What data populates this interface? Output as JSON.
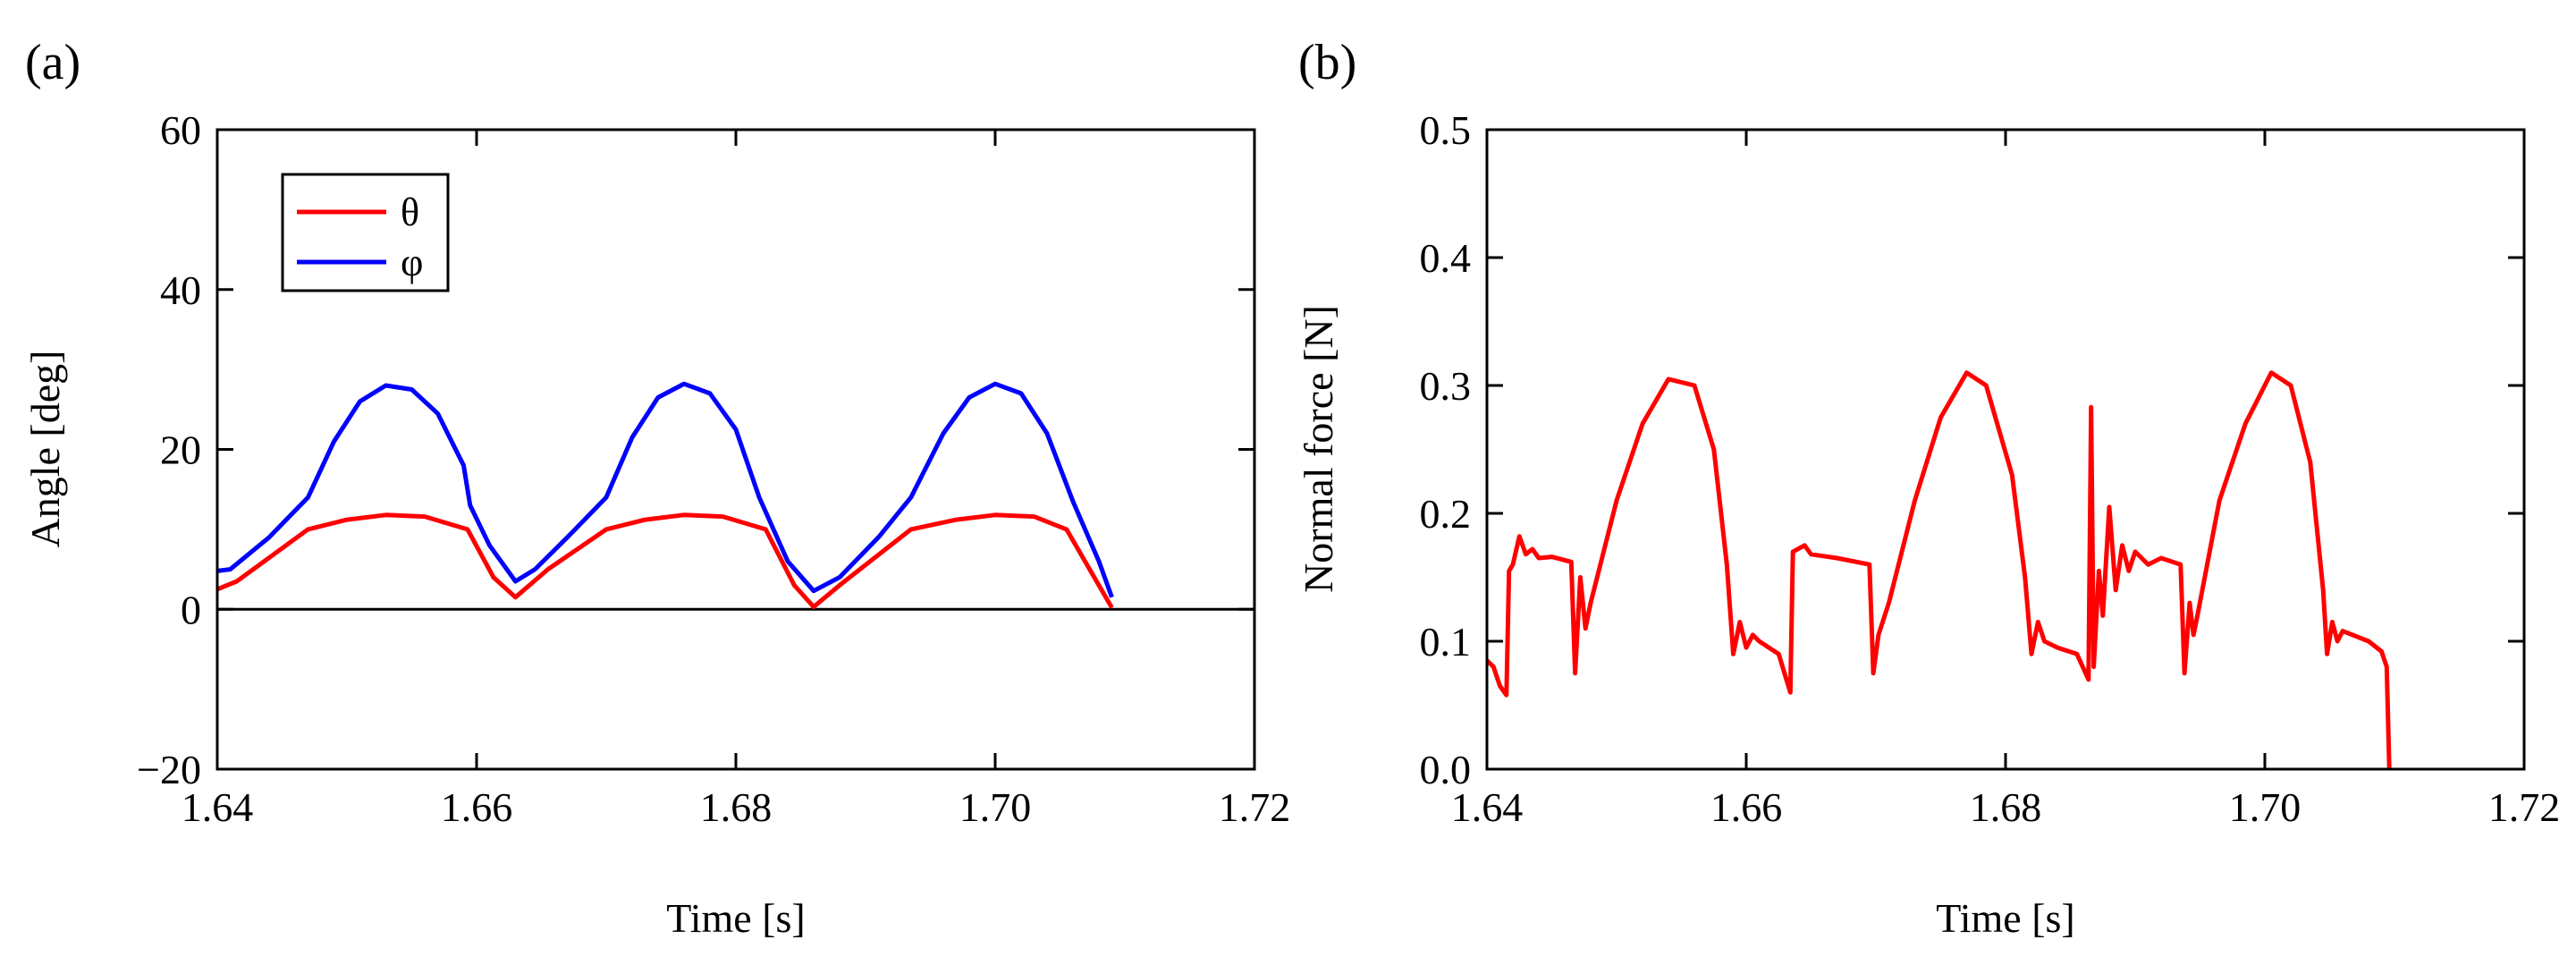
{
  "chart_data": [
    {
      "type": "line",
      "panel_label": "(a)",
      "xlabel": "Time [s]",
      "ylabel": "Angle [deg]",
      "xlim": [
        1.64,
        1.72
      ],
      "ylim": [
        -20,
        60
      ],
      "xticks": [
        1.64,
        1.66,
        1.68,
        1.7,
        1.72
      ],
      "xtick_labels": [
        "1.64",
        "1.66",
        "1.68",
        "1.70",
        "1.72"
      ],
      "yticks": [
        -20,
        0,
        20,
        40,
        60
      ],
      "ytick_labels": [
        "−20",
        "0",
        "20",
        "40",
        "60"
      ],
      "zero_line": true,
      "legend_position": "top-left",
      "series": [
        {
          "name": "θ",
          "color": "#ff0000",
          "points": [
            [
              1.64,
              2.5
            ],
            [
              1.6415,
              3.5
            ],
            [
              1.647,
              10.0
            ],
            [
              1.65,
              11.2
            ],
            [
              1.653,
              11.8
            ],
            [
              1.656,
              11.6
            ],
            [
              1.6593,
              10.0
            ],
            [
              1.6613,
              4.0
            ],
            [
              1.663,
              1.5
            ],
            [
              1.6655,
              5.0
            ],
            [
              1.67,
              10.0
            ],
            [
              1.673,
              11.2
            ],
            [
              1.676,
              11.8
            ],
            [
              1.679,
              11.6
            ],
            [
              1.6823,
              10.0
            ],
            [
              1.6845,
              3.0
            ],
            [
              1.686,
              0.3
            ],
            [
              1.688,
              3.0
            ],
            [
              1.6935,
              10.0
            ],
            [
              1.697,
              11.2
            ],
            [
              1.7,
              11.8
            ],
            [
              1.703,
              11.6
            ],
            [
              1.7055,
              10.0
            ],
            [
              1.709,
              0.2
            ]
          ]
        },
        {
          "name": "φ",
          "color": "#0000ff",
          "points": [
            [
              1.64,
              4.8
            ],
            [
              1.641,
              5.0
            ],
            [
              1.644,
              9.0
            ],
            [
              1.647,
              14.0
            ],
            [
              1.649,
              21.0
            ],
            [
              1.651,
              26.0
            ],
            [
              1.653,
              28.0
            ],
            [
              1.655,
              27.5
            ],
            [
              1.657,
              24.5
            ],
            [
              1.659,
              18.0
            ],
            [
              1.6595,
              13.0
            ],
            [
              1.661,
              8.0
            ],
            [
              1.663,
              3.5
            ],
            [
              1.6645,
              5.0
            ],
            [
              1.667,
              9.0
            ],
            [
              1.67,
              14.0
            ],
            [
              1.672,
              21.5
            ],
            [
              1.674,
              26.5
            ],
            [
              1.676,
              28.2
            ],
            [
              1.678,
              27.0
            ],
            [
              1.68,
              22.5
            ],
            [
              1.6818,
              14.0
            ],
            [
              1.684,
              6.0
            ],
            [
              1.686,
              2.3
            ],
            [
              1.688,
              4.0
            ],
            [
              1.691,
              9.0
            ],
            [
              1.6935,
              14.0
            ],
            [
              1.696,
              22.0
            ],
            [
              1.698,
              26.5
            ],
            [
              1.7,
              28.2
            ],
            [
              1.702,
              27.0
            ],
            [
              1.704,
              22.0
            ],
            [
              1.706,
              13.5
            ],
            [
              1.708,
              6.0
            ],
            [
              1.709,
              1.5
            ]
          ]
        }
      ]
    },
    {
      "type": "line",
      "panel_label": "(b)",
      "xlabel": "Time [s]",
      "ylabel": "Normal force [N]",
      "xlim": [
        1.64,
        1.72
      ],
      "ylim": [
        0.0,
        0.5
      ],
      "xticks": [
        1.64,
        1.66,
        1.68,
        1.7,
        1.72
      ],
      "xtick_labels": [
        "1.64",
        "1.66",
        "1.68",
        "1.70",
        "1.72"
      ],
      "yticks": [
        0.0,
        0.1,
        0.2,
        0.3,
        0.4,
        0.5
      ],
      "ytick_labels": [
        "0.0",
        "0.1",
        "0.2",
        "0.3",
        "0.4",
        "0.5"
      ],
      "series": [
        {
          "name": "Normal force",
          "color": "#ff0000",
          "points": [
            [
              1.64,
              0.085
            ],
            [
              1.6405,
              0.08
            ],
            [
              1.641,
              0.065
            ],
            [
              1.6415,
              0.058
            ],
            [
              1.6417,
              0.155
            ],
            [
              1.642,
              0.16
            ],
            [
              1.6425,
              0.182
            ],
            [
              1.643,
              0.168
            ],
            [
              1.6435,
              0.172
            ],
            [
              1.644,
              0.165
            ],
            [
              1.645,
              0.166
            ],
            [
              1.6465,
              0.162
            ],
            [
              1.6468,
              0.075
            ],
            [
              1.6472,
              0.15
            ],
            [
              1.6476,
              0.11
            ],
            [
              1.648,
              0.13
            ],
            [
              1.65,
              0.21
            ],
            [
              1.652,
              0.27
            ],
            [
              1.654,
              0.305
            ],
            [
              1.656,
              0.3
            ],
            [
              1.6575,
              0.25
            ],
            [
              1.6585,
              0.16
            ],
            [
              1.659,
              0.09
            ],
            [
              1.6595,
              0.115
            ],
            [
              1.66,
              0.095
            ],
            [
              1.6605,
              0.105
            ],
            [
              1.661,
              0.1
            ],
            [
              1.6625,
              0.09
            ],
            [
              1.6634,
              0.06
            ],
            [
              1.6636,
              0.17
            ],
            [
              1.6645,
              0.175
            ],
            [
              1.665,
              0.168
            ],
            [
              1.667,
              0.165
            ],
            [
              1.6695,
              0.16
            ],
            [
              1.6698,
              0.075
            ],
            [
              1.6702,
              0.105
            ],
            [
              1.671,
              0.13
            ],
            [
              1.673,
              0.21
            ],
            [
              1.675,
              0.275
            ],
            [
              1.677,
              0.31
            ],
            [
              1.6785,
              0.3
            ],
            [
              1.6805,
              0.23
            ],
            [
              1.6815,
              0.15
            ],
            [
              1.682,
              0.09
            ],
            [
              1.6825,
              0.115
            ],
            [
              1.683,
              0.1
            ],
            [
              1.684,
              0.095
            ],
            [
              1.6855,
              0.09
            ],
            [
              1.6864,
              0.07
            ],
            [
              1.6866,
              0.283
            ],
            [
              1.6868,
              0.08
            ],
            [
              1.6872,
              0.155
            ],
            [
              1.6875,
              0.12
            ],
            [
              1.688,
              0.205
            ],
            [
              1.6885,
              0.14
            ],
            [
              1.689,
              0.175
            ],
            [
              1.6895,
              0.155
            ],
            [
              1.69,
              0.17
            ],
            [
              1.691,
              0.16
            ],
            [
              1.692,
              0.165
            ],
            [
              1.6935,
              0.16
            ],
            [
              1.6938,
              0.075
            ],
            [
              1.6942,
              0.13
            ],
            [
              1.6945,
              0.105
            ],
            [
              1.6948,
              0.12
            ],
            [
              1.6965,
              0.21
            ],
            [
              1.6985,
              0.27
            ],
            [
              1.7005,
              0.31
            ],
            [
              1.702,
              0.3
            ],
            [
              1.7035,
              0.24
            ],
            [
              1.7045,
              0.14
            ],
            [
              1.7048,
              0.09
            ],
            [
              1.7052,
              0.115
            ],
            [
              1.7056,
              0.1
            ],
            [
              1.706,
              0.108
            ],
            [
              1.708,
              0.1
            ],
            [
              1.709,
              0.092
            ],
            [
              1.7094,
              0.08
            ],
            [
              1.7096,
              0.0
            ]
          ]
        }
      ]
    }
  ]
}
